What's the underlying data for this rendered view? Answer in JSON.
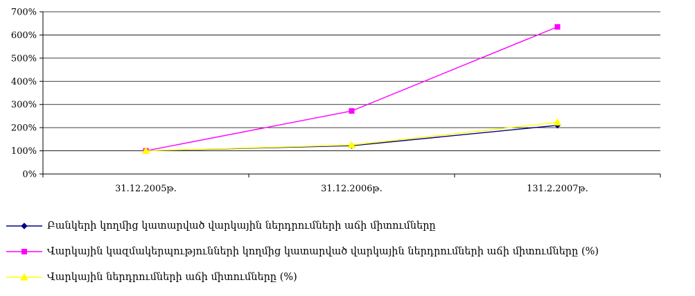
{
  "chart_data": {
    "type": "line",
    "categories": [
      "31.12.2005թ.",
      "31.12.2006թ.",
      "131.2.2007թ."
    ],
    "ylim": [
      0,
      700
    ],
    "yticks": [
      "0%",
      "100%",
      "200%",
      "300%",
      "400%",
      "500%",
      "600%",
      "700%"
    ],
    "grid": true,
    "legend_position": "bottom",
    "series": [
      {
        "name": "Բանկերի կողմից կատարված վարկային ներդրումների աճի միտումները",
        "values": [
          100,
          122,
          210
        ],
        "color": "#000080",
        "marker": "diamond"
      },
      {
        "name": "Վարկային կազմակերպությունների կողմից կատարված վարկային ներդրումների աճի միտումները (%)",
        "values": [
          100,
          272,
          635
        ],
        "color": "#ff00ff",
        "marker": "square"
      },
      {
        "name": "Վարկային ներդրումների աճի միտումները (%)",
        "values": [
          100,
          125,
          223
        ],
        "color": "#ffff00",
        "marker": "triangle"
      }
    ]
  }
}
